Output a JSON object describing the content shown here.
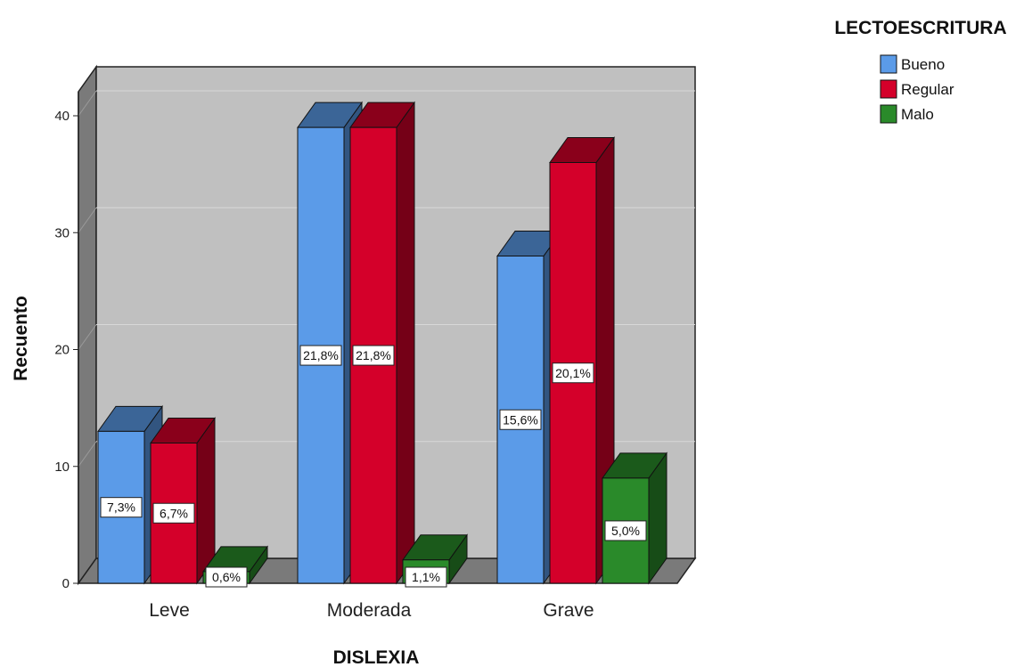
{
  "chart_data": {
    "type": "bar",
    "title": "",
    "xlabel": "DISLEXIA",
    "ylabel": "Recuento",
    "categories": [
      "Leve",
      "Moderada",
      "Grave"
    ],
    "legend_title": "LECTOESCRITURA",
    "legend_position": "top-right",
    "grid": true,
    "style": "3d-clustered",
    "ylim": [
      0,
      40
    ],
    "yticks": [
      "0",
      "10",
      "20",
      "30",
      "40"
    ],
    "series": [
      {
        "name": "Bueno",
        "color": "#5b9be8",
        "values": [
          13,
          39,
          28
        ],
        "labels": [
          "7,3%",
          "21,8%",
          "15,6%"
        ]
      },
      {
        "name": "Regular",
        "color": "#d4002a",
        "values": [
          12,
          39,
          36
        ],
        "labels": [
          "6,7%",
          "21,8%",
          "20,1%"
        ]
      },
      {
        "name": "Malo",
        "color": "#2a8a2a",
        "values": [
          1,
          2,
          9
        ],
        "labels": [
          "0,6%",
          "1,1%",
          "5,0%"
        ]
      }
    ]
  }
}
